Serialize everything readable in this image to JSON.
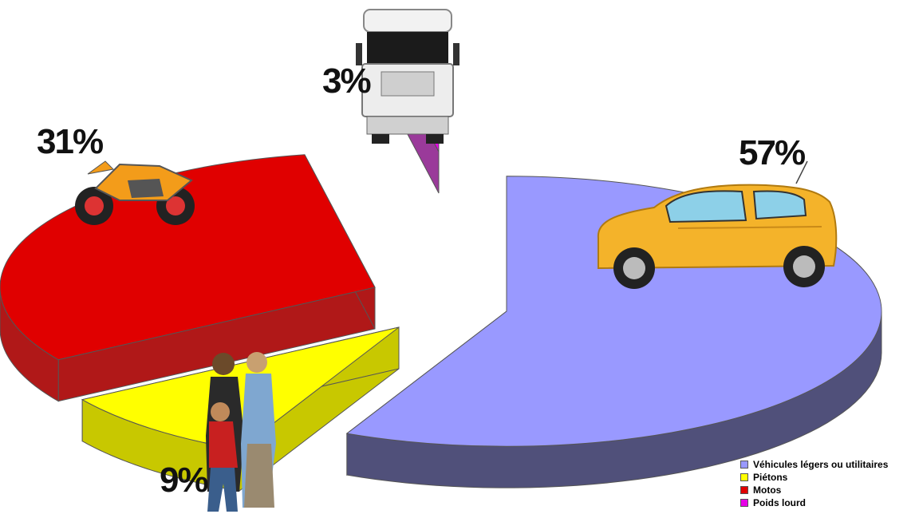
{
  "chart_data": {
    "type": "pie",
    "categories": [
      "Véhicules légers ou utilitaires",
      "Piétons",
      "Motos",
      "Poids lourd"
    ],
    "values": [
      57,
      9,
      31,
      3
    ],
    "labels": [
      "57%",
      "9%",
      "31%",
      "3%"
    ],
    "colors": [
      "#9999ff",
      "#ffff00",
      "#e00000",
      "#e600e6"
    ],
    "side_colors": [
      "#50507a",
      "#c8c800",
      "#b01818",
      "#9a3a9a"
    ],
    "legend_position": "bottom-right",
    "icons": [
      "car-icon",
      "pedestrians-icon",
      "motorcycle-icon",
      "truck-icon"
    ]
  }
}
